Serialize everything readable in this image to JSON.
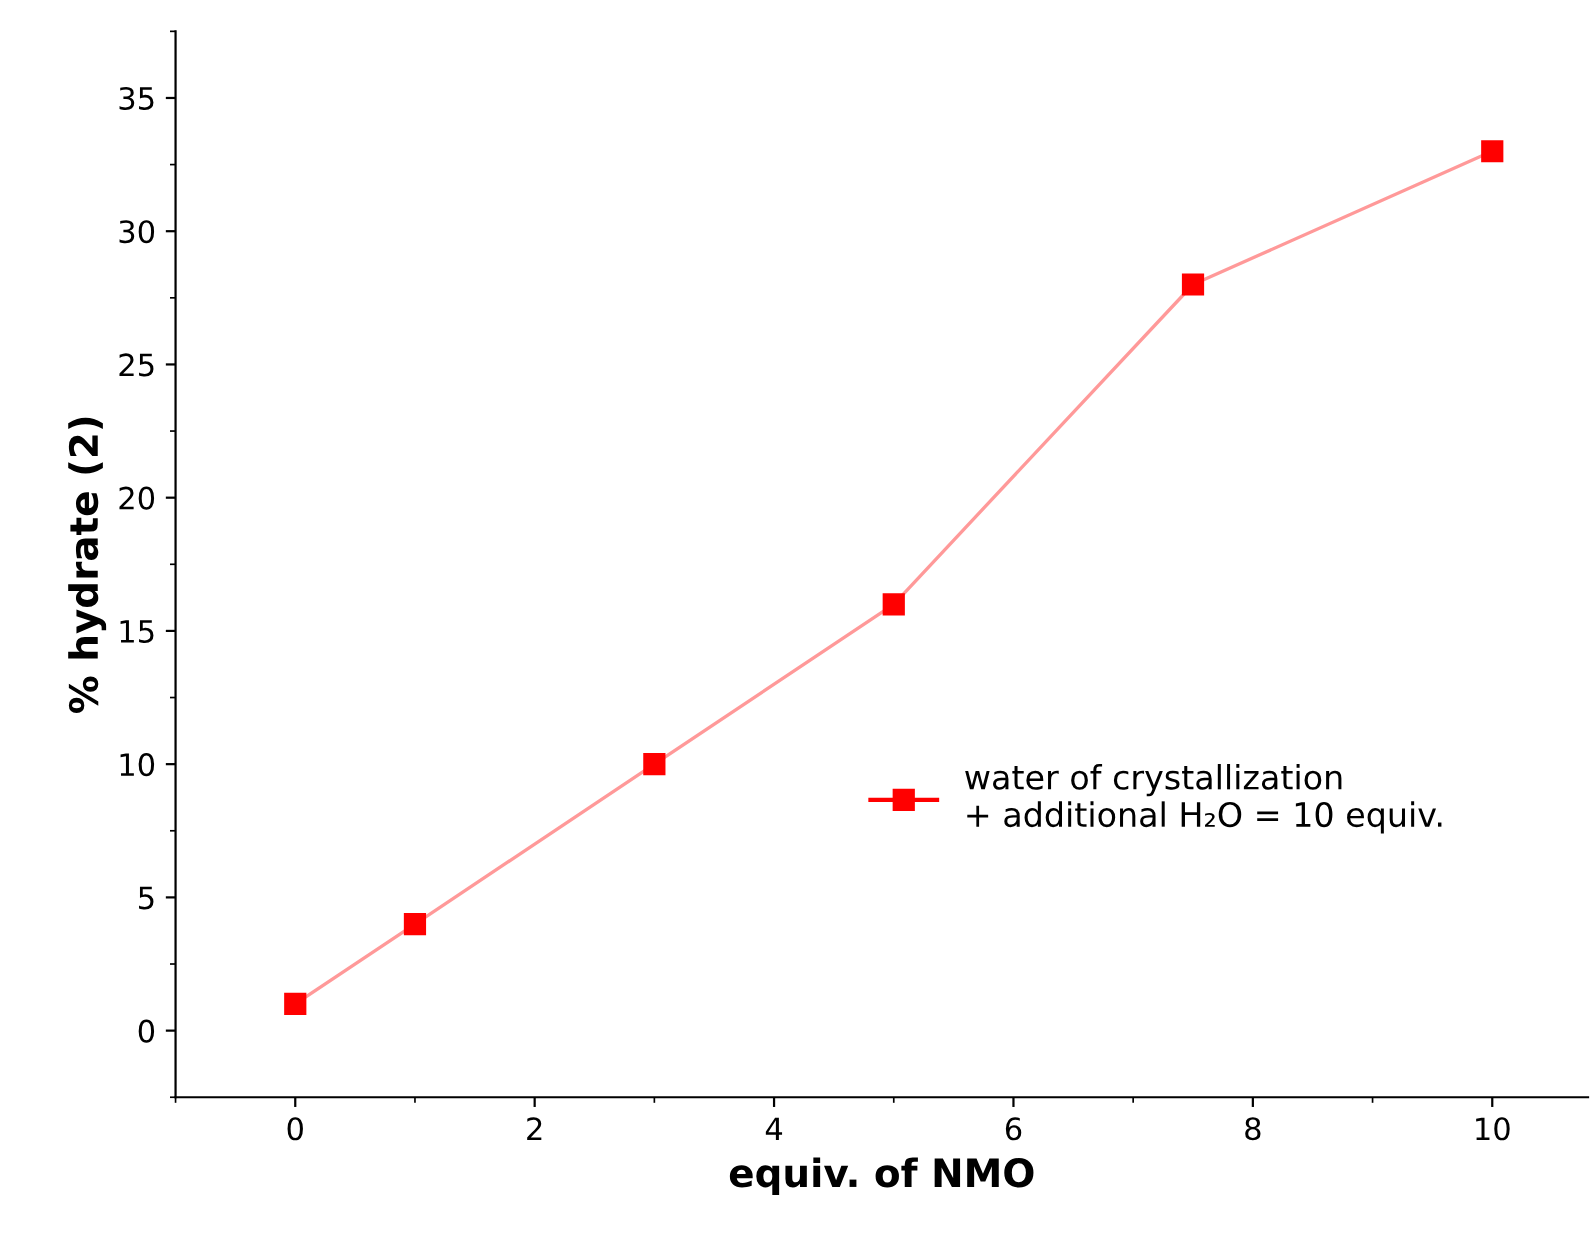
{
  "chart_data": {
    "type": "line",
    "xlabel": "equiv. of NMO",
    "ylabel": "% hydrate (2)",
    "x": [
      0,
      1,
      3,
      5,
      7.5,
      10
    ],
    "series": [
      {
        "name": "water of crystallization\n+ additional H₂O = 10 equiv.",
        "color": "#ff0000",
        "values": [
          1,
          4,
          10,
          16,
          28,
          33
        ]
      }
    ],
    "xlim": [
      -1,
      10.8
    ],
    "ylim": [
      -2.5,
      37.5
    ],
    "xticks": [
      0,
      2,
      4,
      6,
      8,
      10
    ],
    "yticks": [
      0,
      5,
      10,
      15,
      20,
      25,
      30,
      35
    ],
    "marker": "square",
    "line_style": "solid",
    "grid": false,
    "legend": "right"
  }
}
